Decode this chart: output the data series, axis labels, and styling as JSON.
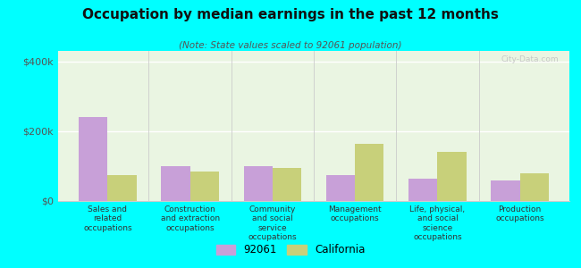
{
  "title": "Occupation by median earnings in the past 12 months",
  "subtitle": "(Note: State values scaled to 92061 population)",
  "categories": [
    "Sales and\nrelated\noccupations",
    "Construction\nand extraction\noccupations",
    "Community\nand social\nservice\noccupations",
    "Management\noccupations",
    "Life, physical,\nand social\nscience\noccupations",
    "Production\noccupations"
  ],
  "values_92061": [
    240000,
    100000,
    100000,
    75000,
    65000,
    60000
  ],
  "values_california": [
    75000,
    85000,
    95000,
    165000,
    140000,
    80000
  ],
  "color_92061": "#c8a0d8",
  "color_california": "#c8d07a",
  "background_color": "#00ffff",
  "chart_bg": "#eaf5e2",
  "yticks": [
    0,
    200000,
    400000
  ],
  "ytick_labels": [
    "$0",
    "$200k",
    "$400k"
  ],
  "ylim": [
    0,
    430000
  ],
  "legend_92061": "92061",
  "legend_california": "California",
  "bar_width": 0.35
}
